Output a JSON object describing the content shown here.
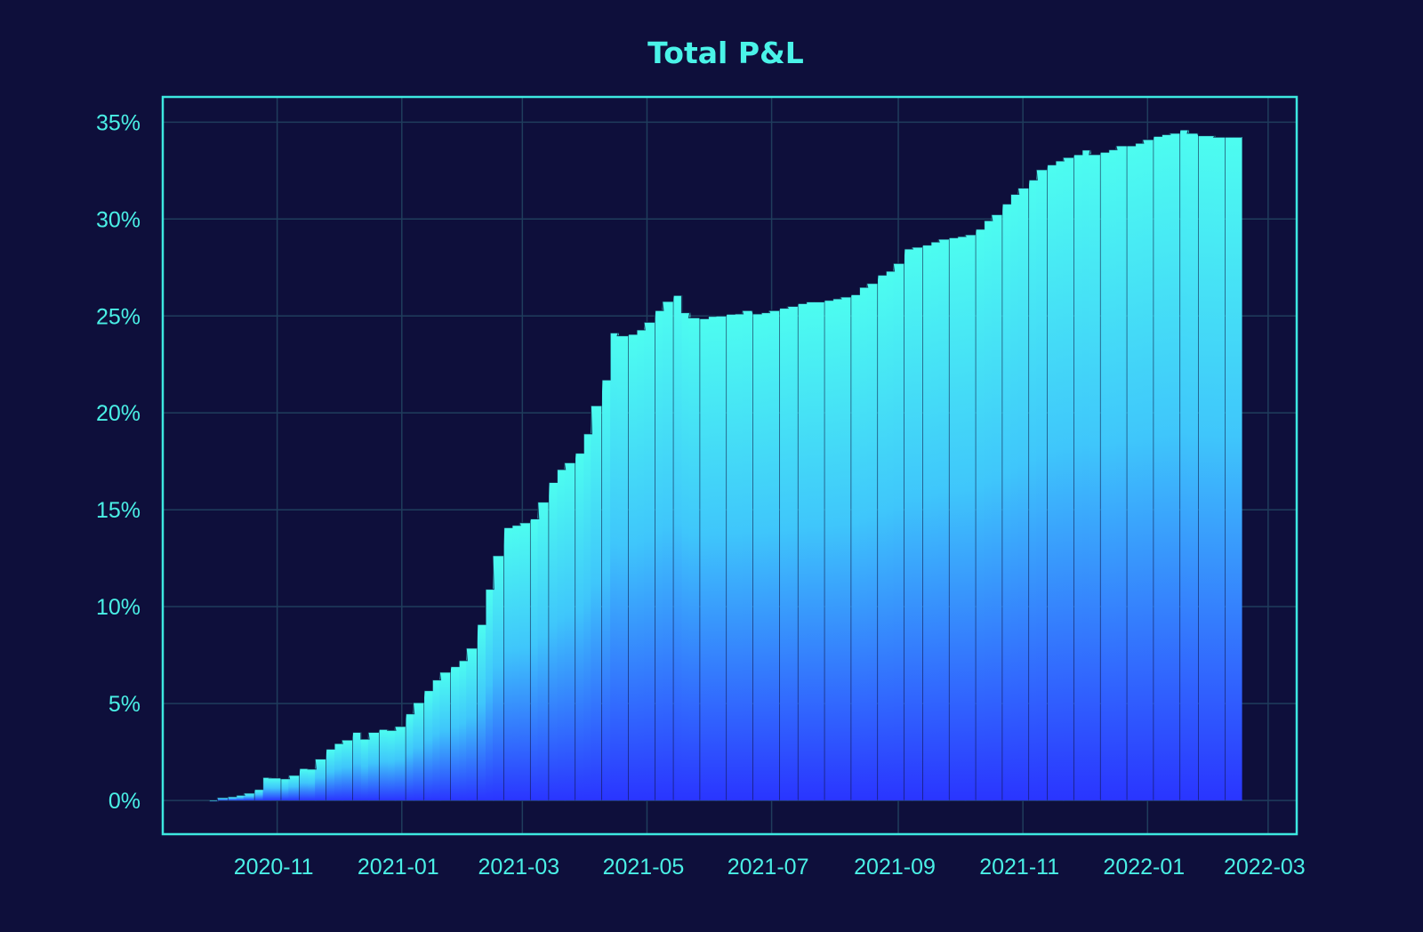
{
  "chart_data": {
    "type": "bar",
    "title": "Total P&L",
    "xlabel": "",
    "ylabel": "",
    "xlim": [
      "2020-09-06",
      "2022-03-15"
    ],
    "ylim": [
      -1.74,
      36.3
    ],
    "grid": true,
    "legend": "none",
    "y_ticks": [
      0,
      5,
      10,
      15,
      20,
      25,
      30,
      35
    ],
    "y_tick_labels": [
      "0%",
      "5%",
      "10%",
      "15%",
      "20%",
      "25%",
      "30%",
      "35%"
    ],
    "x_ticks": [
      "2020-11-01",
      "2021-01-01",
      "2021-03-01",
      "2021-05-01",
      "2021-07-01",
      "2021-09-01",
      "2021-11-01",
      "2022-01-01",
      "2022-03-01"
    ],
    "x_tick_labels": [
      "2020-11",
      "2021-01",
      "2021-03",
      "2021-05",
      "2021-07",
      "2021-09",
      "2021-11",
      "2022-01",
      "2022-03"
    ],
    "unit": "%",
    "colors": {
      "background": "#0e0f3b",
      "frame": "#3de8e0",
      "grid": "#1f3d5c",
      "text": "#4af0e6",
      "bar_top": "#4dfdf0",
      "bar_bottom": "#2a35ff"
    },
    "x": [
      "2020-10-01",
      "2020-10-05",
      "2020-10-10",
      "2020-10-14",
      "2020-10-18",
      "2020-10-23",
      "2020-10-27",
      "2020-10-31",
      "2020-11-05",
      "2020-11-09",
      "2020-11-14",
      "2020-11-18",
      "2020-11-22",
      "2020-11-27",
      "2020-12-01",
      "2020-12-05",
      "2020-12-10",
      "2020-12-14",
      "2020-12-18",
      "2020-12-23",
      "2020-12-27",
      "2020-12-31",
      "2021-01-05",
      "2021-01-09",
      "2021-01-14",
      "2021-01-18",
      "2021-01-22",
      "2021-01-27",
      "2021-01-31",
      "2021-02-04",
      "2021-02-09",
      "2021-02-13",
      "2021-02-17",
      "2021-02-22",
      "2021-02-26",
      "2021-03-02",
      "2021-03-07",
      "2021-03-11",
      "2021-03-16",
      "2021-03-20",
      "2021-03-24",
      "2021-03-29",
      "2021-04-02",
      "2021-04-06",
      "2021-04-11",
      "2021-04-15",
      "2021-04-19",
      "2021-04-24",
      "2021-04-28",
      "2021-05-02",
      "2021-05-07",
      "2021-05-11",
      "2021-05-16",
      "2021-05-20",
      "2021-05-24",
      "2021-05-29",
      "2021-06-02",
      "2021-06-06",
      "2021-06-11",
      "2021-06-15",
      "2021-06-19",
      "2021-06-24",
      "2021-06-28",
      "2021-07-02",
      "2021-07-07",
      "2021-07-11",
      "2021-07-16",
      "2021-07-20",
      "2021-07-24",
      "2021-07-29",
      "2021-08-02",
      "2021-08-06",
      "2021-08-11",
      "2021-08-15",
      "2021-08-19",
      "2021-08-24",
      "2021-08-28",
      "2021-09-01",
      "2021-09-06",
      "2021-09-10",
      "2021-09-15",
      "2021-09-19",
      "2021-09-23",
      "2021-09-28",
      "2021-10-02",
      "2021-10-06",
      "2021-10-11",
      "2021-10-15",
      "2021-10-19",
      "2021-10-24",
      "2021-10-28",
      "2021-11-01",
      "2021-11-06",
      "2021-11-10",
      "2021-11-15",
      "2021-11-19",
      "2021-11-23",
      "2021-11-28",
      "2021-12-02",
      "2021-12-06",
      "2021-12-11",
      "2021-12-15",
      "2021-12-19",
      "2021-12-24",
      "2021-12-28",
      "2022-01-01",
      "2022-01-06",
      "2022-01-10",
      "2022-01-14",
      "2022-01-19",
      "2022-01-23",
      "2022-01-28",
      "2022-02-01",
      "2022-02-05",
      "2022-02-10",
      "2022-02-14"
    ],
    "values": [
      -0.05,
      0.15,
      0.2,
      0.27,
      0.38,
      0.57,
      1.19,
      1.16,
      1.12,
      1.3,
      1.65,
      1.62,
      2.14,
      2.65,
      2.94,
      3.12,
      3.52,
      3.17,
      3.52,
      3.67,
      3.62,
      3.82,
      4.47,
      5.05,
      5.67,
      6.22,
      6.62,
      6.91,
      7.22,
      7.86,
      9.08,
      10.9,
      12.63,
      14.08,
      14.2,
      14.33,
      14.53,
      15.4,
      16.41,
      17.08,
      17.43,
      17.92,
      18.92,
      20.37,
      21.7,
      24.13,
      23.98,
      24.05,
      24.28,
      24.68,
      25.28,
      25.75,
      26.06,
      25.17,
      24.91,
      24.86,
      24.98,
      25.0,
      25.09,
      25.11,
      25.28,
      25.11,
      25.17,
      25.28,
      25.4,
      25.5,
      25.64,
      25.73,
      25.73,
      25.81,
      25.89,
      25.98,
      26.1,
      26.48,
      26.68,
      27.11,
      27.31,
      27.71,
      28.46,
      28.55,
      28.66,
      28.82,
      28.96,
      29.04,
      29.1,
      29.19,
      29.48,
      29.92,
      30.23,
      30.78,
      31.28,
      31.6,
      32.02,
      32.55,
      32.8,
      33.0,
      33.18,
      33.32,
      33.56,
      33.33,
      33.45,
      33.58,
      33.78,
      33.78,
      33.91,
      34.1,
      34.27,
      34.36,
      34.43,
      34.6,
      34.43,
      34.3,
      34.3,
      34.23,
      34.23,
      34.23
    ]
  }
}
